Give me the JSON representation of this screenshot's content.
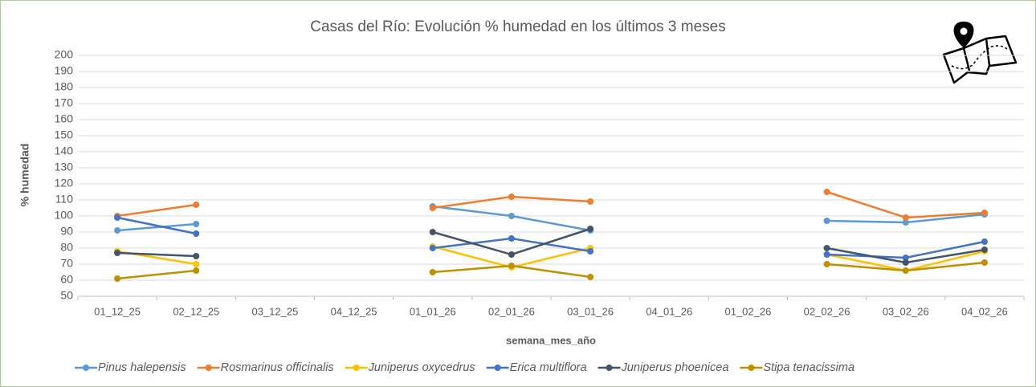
{
  "chart_data": {
    "type": "line",
    "title": "Casas del Río: Evolución % humedad en los últimos 3 meses",
    "x_label": "semana_mes_año",
    "y_label": "% humedad",
    "categories": [
      "01_12_25",
      "02_12_25",
      "03_12_25",
      "04_12_25",
      "01_01_26",
      "02_01_26",
      "03_01_26",
      "04_01_26",
      "01_02_26",
      "02_02_26",
      "03_02_26",
      "04_02_26"
    ],
    "ylim": [
      50,
      200
    ],
    "yticks": [
      50,
      60,
      70,
      80,
      90,
      100,
      110,
      120,
      130,
      140,
      150,
      160,
      170,
      180,
      190,
      200
    ],
    "grid": true,
    "legend": "bottom",
    "series": [
      {
        "name": "Pinus halepensis",
        "color": "#5b9bd5",
        "values": [
          91,
          95,
          null,
          null,
          106,
          100,
          91,
          null,
          null,
          97,
          96,
          101
        ]
      },
      {
        "name": "Rosmarinus officinalis",
        "color": "#ed7d31",
        "values": [
          100,
          107,
          null,
          null,
          105,
          112,
          109,
          null,
          null,
          115,
          99,
          102
        ]
      },
      {
        "name": "Juniperus oxycedrus",
        "color": "#ffc000",
        "values": [
          78,
          70,
          null,
          null,
          81,
          68,
          80,
          null,
          null,
          76,
          66,
          78
        ]
      },
      {
        "name": "Erica multiflora",
        "color": "#4472c4",
        "values": [
          99,
          89,
          null,
          null,
          80,
          86,
          78,
          null,
          null,
          76,
          74,
          84
        ]
      },
      {
        "name": "Juniperus phoenicea",
        "color": "#44546a",
        "values": [
          77,
          75,
          null,
          null,
          90,
          76,
          92,
          null,
          null,
          80,
          71,
          79
        ]
      },
      {
        "name": "Stipa tenacissima",
        "color": "#bf9000",
        "values": [
          61,
          66,
          null,
          null,
          65,
          69,
          62,
          null,
          null,
          70,
          66,
          71
        ]
      }
    ]
  }
}
